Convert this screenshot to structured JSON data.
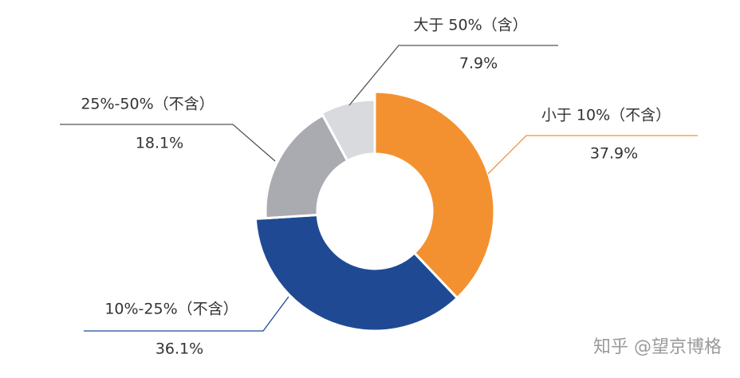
{
  "chart_data": {
    "type": "pie",
    "donut": true,
    "categories": [
      "小于 10%（不含）",
      "10%-25%（不含）",
      "25%-50%（不含）",
      "大于 50%（含）"
    ],
    "values": [
      37.9,
      36.1,
      18.1,
      7.9
    ],
    "value_labels": [
      "37.9%",
      "36.1%",
      "18.1%",
      "7.9%"
    ],
    "colors": [
      "#f39130",
      "#1f4a93",
      "#a9abb0",
      "#d8dadd"
    ]
  },
  "watermark": "知乎 @望京博格"
}
